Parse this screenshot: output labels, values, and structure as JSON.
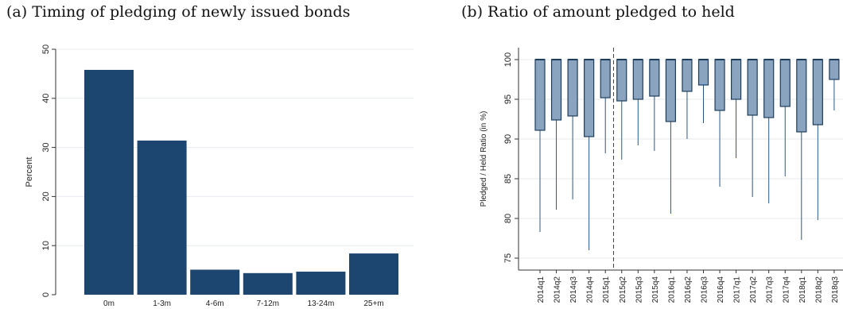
{
  "chart_data": [
    {
      "type": "bar",
      "title": "(a) Timing of pledging of newly issued bonds",
      "ylabel": "Percent",
      "xlabel": "",
      "categories": [
        "0m",
        "1-3m",
        "4-6m",
        "7-12m",
        "13-24m",
        "25+m"
      ],
      "values": [
        45.8,
        31.4,
        5.1,
        4.4,
        4.7,
        8.4
      ],
      "ylim": [
        0,
        50
      ],
      "yticks": [
        0,
        10,
        20,
        30,
        40,
        50
      ],
      "grid": true,
      "colors": {
        "bar": "#1c4670"
      }
    },
    {
      "type": "box",
      "title": "(b) Ratio of amount pledged to held",
      "ylabel": "Pledged / Held Ratio (in %)",
      "xlabel": "",
      "categories": [
        "2014q1",
        "2014q2",
        "2014q3",
        "2014q4",
        "2015q1",
        "2015q2",
        "2015q3",
        "2015q4",
        "2016q1",
        "2016q2",
        "2016q3",
        "2016q4",
        "2017q1",
        "2017q2",
        "2017q3",
        "2017q4",
        "2018q1",
        "2018q2",
        "2018q3",
        "2018q4"
      ],
      "q1": [
        91.1,
        92.4,
        92.9,
        90.3,
        95.2,
        94.8,
        95.0,
        95.4,
        92.2,
        96.0,
        96.8,
        93.6,
        95.0,
        93.0,
        92.7,
        94.1,
        90.9,
        91.8,
        97.5,
        98.0
      ],
      "whisker_low": [
        78.3,
        81.1,
        82.4,
        76.0,
        88.2,
        87.4,
        89.2,
        88.5,
        80.6,
        90.0,
        92.0,
        84.0,
        87.6,
        82.7,
        81.9,
        85.3,
        77.3,
        79.8,
        93.6,
        95.1
      ],
      "upper": [
        100,
        100,
        100,
        100,
        100,
        100,
        100,
        100,
        100,
        100,
        100,
        100,
        100,
        100,
        100,
        100,
        100,
        100,
        100,
        100
      ],
      "ylim": [
        73.5,
        101.5
      ],
      "yticks": [
        75,
        80,
        85,
        90,
        95,
        100
      ],
      "divider_after": "2015q1",
      "grid": true,
      "colors": {
        "box_fill": "#8aa3bf",
        "box_edge": "#1e3d5c",
        "whisker": "#2c5880",
        "divider": "#444444"
      }
    }
  ]
}
